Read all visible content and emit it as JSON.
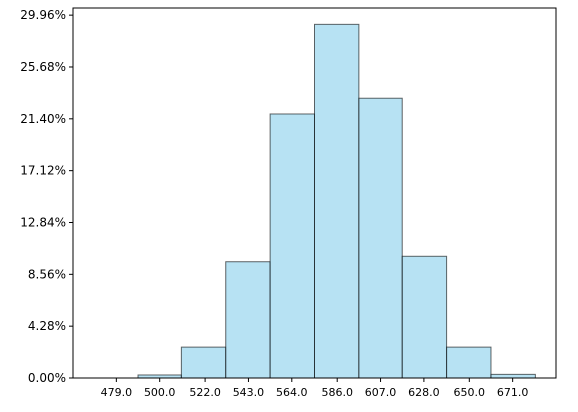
{
  "chart_data": {
    "type": "bar",
    "subtype": "histogram",
    "bins": [
      {
        "start": 468.5,
        "end": 489.5,
        "value": 0.0
      },
      {
        "start": 489.5,
        "end": 510.5,
        "value": 0.25
      },
      {
        "start": 510.5,
        "end": 532.0,
        "value": 2.55
      },
      {
        "start": 532.0,
        "end": 553.5,
        "value": 9.6
      },
      {
        "start": 553.5,
        "end": 575.0,
        "value": 21.8
      },
      {
        "start": 575.0,
        "end": 596.5,
        "value": 29.2
      },
      {
        "start": 596.5,
        "end": 617.5,
        "value": 23.1
      },
      {
        "start": 617.5,
        "end": 639.0,
        "value": 10.05
      },
      {
        "start": 639.0,
        "end": 660.5,
        "value": 2.55
      },
      {
        "start": 660.5,
        "end": 682.0,
        "value": 0.3
      }
    ],
    "x_ticks": [
      479.0,
      500.0,
      522.0,
      543.0,
      564.0,
      586.0,
      607.0,
      628.0,
      650.0,
      671.0
    ],
    "x_tick_labels": [
      "479.0",
      "500.0",
      "522.0",
      "543.0",
      "564.0",
      "586.0",
      "607.0",
      "628.0",
      "650.0",
      "671.0"
    ],
    "y_ticks": [
      0.0,
      4.28,
      8.56,
      12.84,
      17.12,
      21.4,
      25.68,
      29.96
    ],
    "y_tick_labels": [
      "0.00%",
      "4.28%",
      "8.56%",
      "12.84%",
      "17.12%",
      "21.40%",
      "25.68%",
      "29.96%"
    ],
    "xlim": [
      458.0,
      692.0
    ],
    "ylim": [
      0.0,
      30.55
    ],
    "grid": false,
    "title": "",
    "xlabel": "",
    "ylabel": "",
    "colors": {
      "bar_fill": "#87ceeb",
      "bar_edge": "#000000",
      "axis": "#000000"
    }
  }
}
